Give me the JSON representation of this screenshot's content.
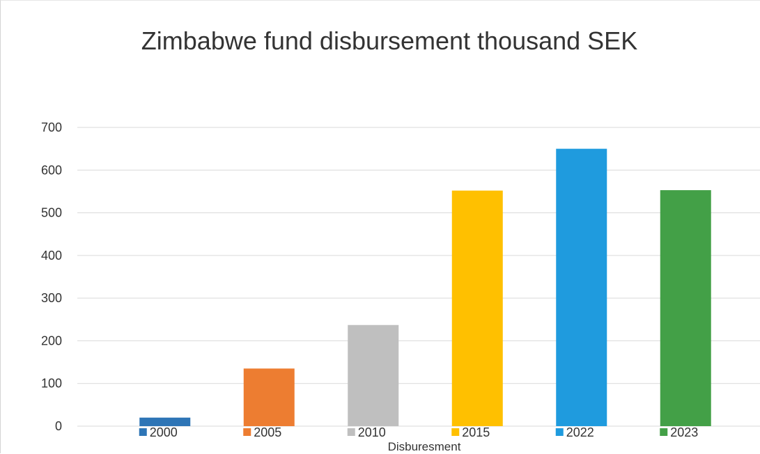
{
  "chart_data": {
    "type": "bar",
    "title": "Zimbabwe fund disbursement thousand SEK",
    "xlabel": "Disburesment",
    "ylabel": "",
    "ylim": [
      0,
      700
    ],
    "yticks": [
      0,
      100,
      200,
      300,
      400,
      500,
      600,
      700
    ],
    "grid": true,
    "legend_position": "bottom",
    "series": [
      {
        "name": "2000",
        "value": 20,
        "color": "#2e75b6"
      },
      {
        "name": "2005",
        "value": 135,
        "color": "#ed7d31"
      },
      {
        "name": "2010",
        "value": 237,
        "color": "#bfbfbf"
      },
      {
        "name": "2015",
        "value": 552,
        "color": "#ffc000"
      },
      {
        "name": "2022",
        "value": 650,
        "color": "#1f9bde"
      },
      {
        "name": "2023",
        "value": 553,
        "color": "#43a047"
      }
    ]
  }
}
